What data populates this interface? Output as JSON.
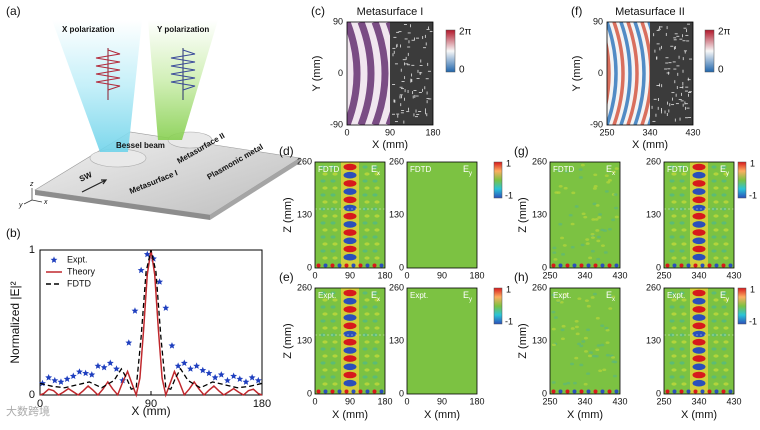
{
  "schematic": {
    "label": "(a)",
    "beams": [
      "X polarization",
      "Y polarization"
    ],
    "bessel": "Bessel beam",
    "metasurfaces": [
      "Metasurface I",
      "Metasurface II"
    ],
    "substrate": "Plasmonic metal",
    "wave": "SW",
    "axes": [
      "z",
      "y",
      "x"
    ]
  },
  "chart_data": {
    "type": "line",
    "label": "(b)",
    "xlabel": "X (mm)",
    "ylabel": "Normalized |E|²",
    "xlim": [
      0,
      180
    ],
    "ylim": [
      0,
      1
    ],
    "xticks": [
      0,
      90,
      180
    ],
    "yticks": [
      0,
      1
    ],
    "legend": "upper left",
    "series": [
      {
        "name": "Expt.",
        "color": "#1f3fbf",
        "style": "star",
        "x": [
          2,
          7,
          12,
          17,
          22,
          27,
          32,
          37,
          42,
          47,
          52,
          57,
          62,
          67,
          72,
          77,
          82,
          87,
          92,
          97,
          102,
          107,
          112,
          117,
          122,
          127,
          132,
          137,
          142,
          147,
          152,
          157,
          162,
          167,
          172,
          177
        ],
        "values": [
          0.08,
          0.12,
          0.1,
          0.09,
          0.11,
          0.13,
          0.16,
          0.15,
          0.14,
          0.2,
          0.19,
          0.22,
          0.18,
          0.1,
          0.36,
          0.58,
          0.86,
          0.97,
          0.94,
          0.78,
          0.6,
          0.34,
          0.2,
          0.22,
          0.18,
          0.2,
          0.17,
          0.15,
          0.12,
          0.14,
          0.1,
          0.13,
          0.11,
          0.09,
          0.12,
          0.1
        ]
      },
      {
        "name": "Theory",
        "color": "#c0282d",
        "style": "solid",
        "x": [
          0,
          3,
          7,
          11,
          15,
          19,
          23,
          27,
          31,
          35,
          39,
          43,
          47,
          51,
          55,
          59,
          63,
          67,
          71,
          75,
          78,
          81,
          84,
          87,
          90,
          93,
          96,
          99,
          102,
          105,
          109,
          113,
          117,
          121,
          125,
          129,
          133,
          137,
          141,
          145,
          149,
          153,
          157,
          161,
          165,
          169,
          173,
          177,
          180
        ],
        "values": [
          0,
          0.01,
          0.04,
          0.03,
          0,
          0.02,
          0.044,
          0.022,
          0,
          0.029,
          0.062,
          0.033,
          0,
          0.04,
          0.09,
          0.041,
          0.001,
          0.088,
          0.162,
          0.068,
          0,
          0.116,
          0.45,
          0.832,
          1,
          0.832,
          0.45,
          0.116,
          0,
          0.068,
          0.162,
          0.088,
          0.001,
          0.041,
          0.09,
          0.04,
          0,
          0.033,
          0.062,
          0.029,
          0,
          0.022,
          0.044,
          0.02,
          0,
          0.03,
          0.04,
          0.01,
          0
        ]
      },
      {
        "name": "FDTD",
        "color": "#000000",
        "style": "dashed",
        "x": [
          0,
          10,
          20,
          30,
          40,
          50,
          60,
          66,
          70,
          74,
          78,
          82,
          86,
          90,
          94,
          98,
          102,
          106,
          110,
          114,
          120,
          130,
          140,
          150,
          160,
          170,
          180
        ],
        "values": [
          0.08,
          0.06,
          0.05,
          0.07,
          0.09,
          0.05,
          0.1,
          0.18,
          0.12,
          0.04,
          0.05,
          0.4,
          0.85,
          1,
          0.85,
          0.4,
          0.05,
          0.04,
          0.12,
          0.18,
          0.1,
          0.05,
          0.09,
          0.07,
          0.05,
          0.06,
          0.08
        ]
      }
    ]
  },
  "metasurfaces": [
    {
      "label": "(c)",
      "title": "Metasurface I",
      "ylabel": "Y (mm)",
      "xlabel": "X (mm)",
      "yticks": [
        "90",
        "0",
        "-90"
      ],
      "xticks": [
        "0",
        "90",
        "180"
      ],
      "colorbar": [
        "2π",
        "0"
      ],
      "palette": "purple"
    },
    {
      "label": "(f)",
      "title": "Metasurface II",
      "ylabel": "Y (mm)",
      "xlabel": "X (mm)",
      "yticks": [
        "90",
        "0",
        "-90"
      ],
      "xticks": [
        "250",
        "340",
        "430"
      ],
      "colorbar": [
        "2π",
        "0"
      ],
      "palette": "redblue"
    }
  ],
  "field_maps": [
    {
      "label": "(d)",
      "zlabel": "Z (mm)",
      "zticks": [
        "260",
        "130",
        "0"
      ],
      "colorbar": [
        "1",
        "-1"
      ],
      "panels": [
        {
          "tag": "FDTD",
          "symbol": "E",
          "component": "x",
          "xticks": [
            "0",
            "90",
            "180"
          ],
          "pattern": "bessel"
        },
        {
          "tag": "FDTD",
          "symbol": "E",
          "component": "y",
          "xticks": [
            "0",
            "90",
            "180"
          ],
          "pattern": "flat"
        }
      ]
    },
    {
      "label": "(e)",
      "zlabel": "Z (mm)",
      "zticks": [
        "260",
        "130",
        "0"
      ],
      "colorbar": [
        "1",
        "-1"
      ],
      "panels": [
        {
          "tag": "Expt.",
          "symbol": "E",
          "component": "x",
          "xticks": [
            "0",
            "90",
            "180"
          ],
          "xlabel": "X (mm)",
          "pattern": "bessel"
        },
        {
          "tag": "Expt.",
          "symbol": "E",
          "component": "y",
          "xticks": [
            "0",
            "90",
            "180"
          ],
          "xlabel": "X (mm)",
          "pattern": "flat"
        }
      ]
    },
    {
      "label": "(g)",
      "zlabel": "Z (mm)",
      "zticks": [
        "260",
        "130",
        "0"
      ],
      "colorbar": [
        "1",
        "-1"
      ],
      "panels": [
        {
          "tag": "FDTD",
          "symbol": "E",
          "component": "x",
          "xticks": [
            "250",
            "340",
            "430"
          ],
          "pattern": "speckle"
        },
        {
          "tag": "FDTD",
          "symbol": "E",
          "component": "y",
          "xticks": [
            "250",
            "340",
            "430"
          ],
          "pattern": "bessel"
        }
      ]
    },
    {
      "label": "(h)",
      "zlabel": "Z (mm)",
      "zticks": [
        "260",
        "130",
        "0"
      ],
      "colorbar": [
        "1",
        "-1"
      ],
      "panels": [
        {
          "tag": "Expt.",
          "symbol": "E",
          "component": "x",
          "xticks": [
            "250",
            "340",
            "430"
          ],
          "xlabel": "X (mm)",
          "pattern": "speckle"
        },
        {
          "tag": "Expt.",
          "symbol": "E",
          "component": "y",
          "xticks": [
            "250",
            "340",
            "430"
          ],
          "xlabel": "X (mm)",
          "pattern": "bessel"
        }
      ]
    }
  ],
  "watermark": "大数跨境"
}
